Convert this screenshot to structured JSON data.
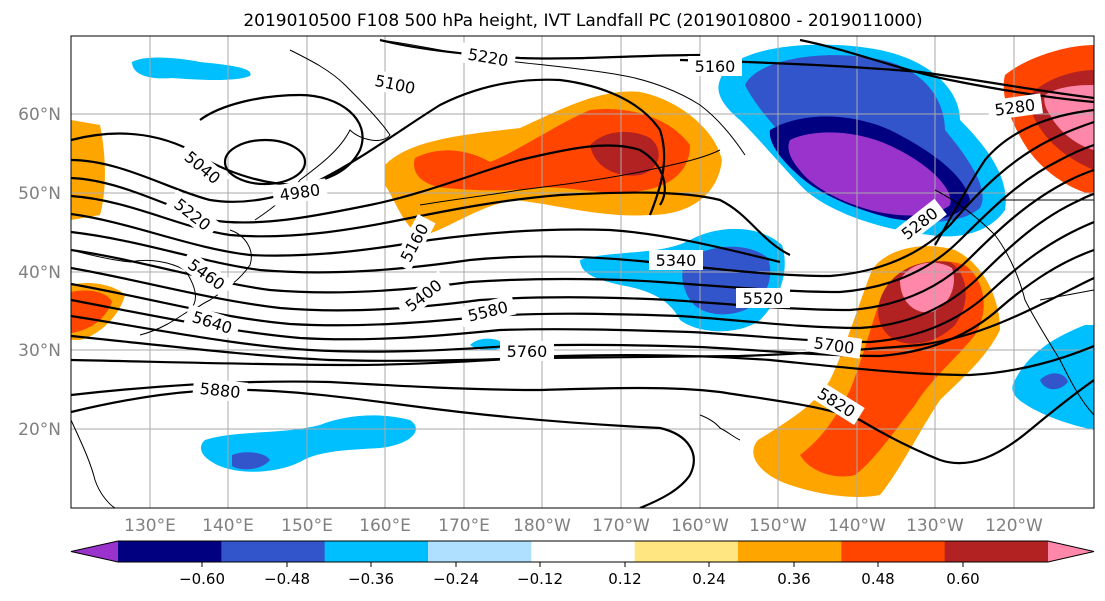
{
  "figure": {
    "title": "2019010500 F108 500 hPa height, IVT Landfall PC (2019010800 - 2019011000)"
  },
  "axes": {
    "lat_labels": [
      "60°N",
      "50°N",
      "40°N",
      "30°N",
      "20°N"
    ],
    "lon_labels": [
      "130°E",
      "140°E",
      "150°E",
      "160°E",
      "170°E",
      "180°W",
      "170°W",
      "160°W",
      "150°W",
      "140°W",
      "130°W",
      "120°W"
    ]
  },
  "contour_labels": [
    "5220",
    "5100",
    "5160",
    "5280",
    "5040",
    "4980",
    "5220",
    "5160",
    "5280",
    "5340",
    "5460",
    "5400",
    "5520",
    "5640",
    "5580",
    "5760",
    "5700",
    "5880",
    "5820"
  ],
  "colorbar": {
    "ticks": [
      "−0.60",
      "−0.48",
      "−0.36",
      "−0.24",
      "−0.12",
      "0.12",
      "0.24",
      "0.36",
      "0.48",
      "0.60"
    ],
    "colors": [
      "#9933cc",
      "#000080",
      "#3355cc",
      "#00bfff",
      "#b0e0ff",
      "#ffffff",
      "#ffe680",
      "#ffa500",
      "#ff4500",
      "#b22222",
      "#ff88aa"
    ]
  }
}
